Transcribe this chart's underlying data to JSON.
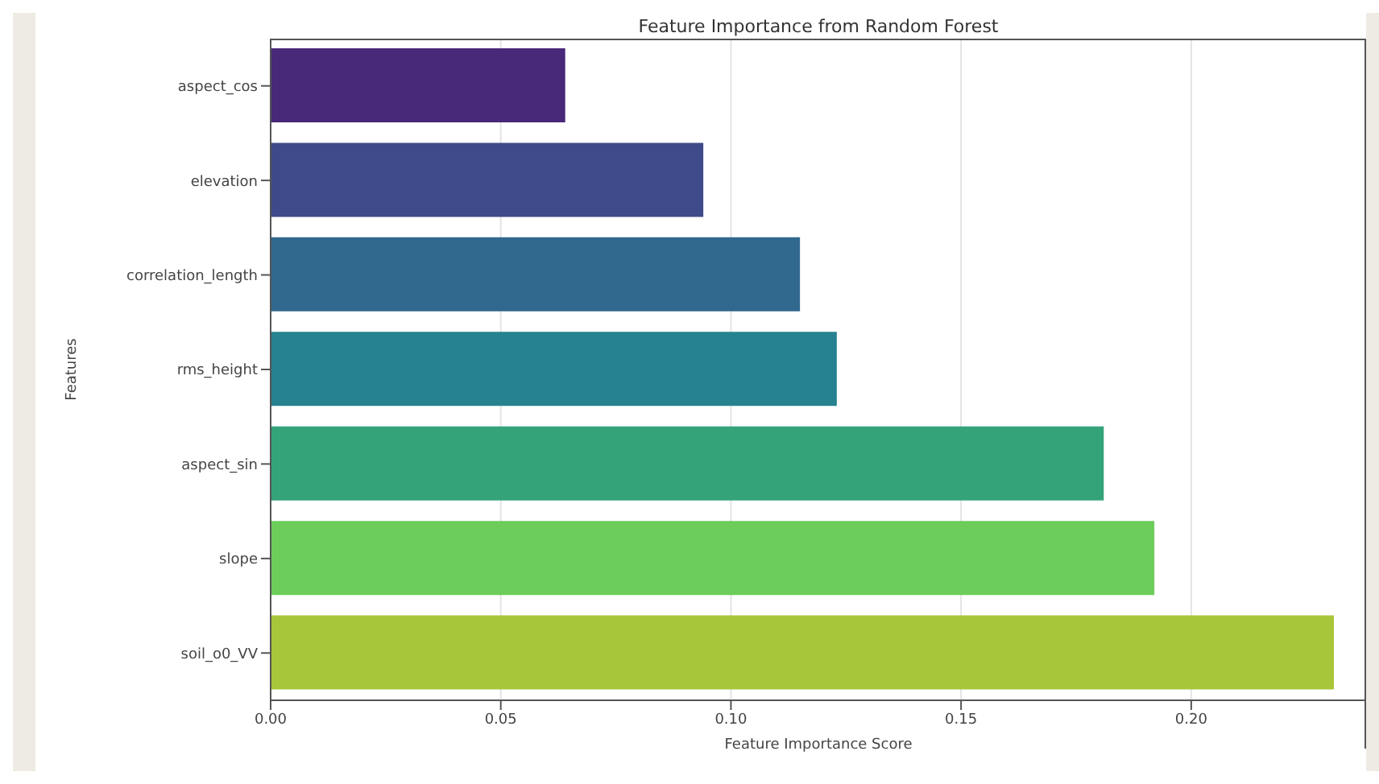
{
  "chart_data": {
    "type": "bar",
    "orientation": "horizontal",
    "title": "Feature Importance from Random Forest",
    "xlabel": "Feature Importance Score",
    "ylabel": "Features",
    "categories": [
      "aspect_cos",
      "elevation",
      "correlation_length",
      "rms_height",
      "aspect_sin",
      "slope",
      "soil_o0_VV"
    ],
    "values": [
      0.064,
      0.094,
      0.115,
      0.123,
      0.181,
      0.192,
      0.231
    ],
    "colors": [
      "#482878",
      "#3e4a89",
      "#31688e",
      "#26828e",
      "#35a37a",
      "#6ccd5a",
      "#a8c63a"
    ],
    "xlim": [
      0,
      0.238
    ],
    "xticks": [
      {
        "value": 0,
        "label": "0.00"
      },
      {
        "value": 0.05,
        "label": "0.05"
      },
      {
        "value": 0.1,
        "label": "0.10"
      },
      {
        "value": 0.15,
        "label": "0.15"
      },
      {
        "value": 0.2,
        "label": "0.20"
      }
    ],
    "grid": "x"
  }
}
